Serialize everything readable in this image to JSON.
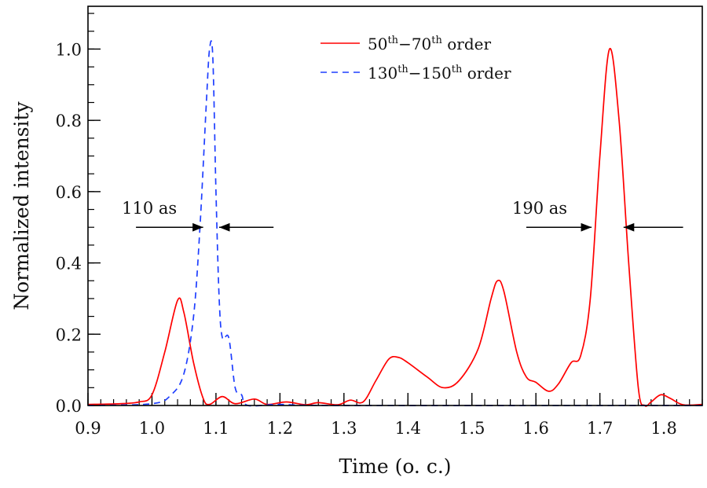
{
  "chart_data": {
    "type": "line",
    "xlabel": "Time (o. c.)",
    "ylabel": "Normalized intensity",
    "xlim": [
      0.9,
      1.86
    ],
    "ylim": [
      0.0,
      1.12
    ],
    "xticks": [
      0.9,
      1.0,
      1.1,
      1.2,
      1.3,
      1.4,
      1.5,
      1.6,
      1.7,
      1.8
    ],
    "xtick_labels": [
      "0.9",
      "1.0",
      "1.1",
      "1.2",
      "1.3",
      "1.4",
      "1.5",
      "1.6",
      "1.7",
      "1.8"
    ],
    "yticks": [
      0.0,
      0.2,
      0.4,
      0.6,
      0.8,
      1.0
    ],
    "ytick_labels": [
      "0.0",
      "0.2",
      "0.4",
      "0.6",
      "0.8",
      "1.0"
    ],
    "grid": false,
    "legend_placement": "top-center",
    "series": [
      {
        "name": "50th-70th order",
        "legend": {
          "a": "50",
          "sup1": "th",
          "b": "−70",
          "sup2": "th",
          "c": " order"
        },
        "color": "#ff0000",
        "dash": "solid",
        "x": [
          0.9,
          0.95,
          0.98,
          1.0,
          1.02,
          1.04,
          1.05,
          1.065,
          1.08,
          1.09,
          1.11,
          1.13,
          1.16,
          1.18,
          1.21,
          1.24,
          1.26,
          1.29,
          1.31,
          1.33,
          1.35,
          1.37,
          1.385,
          1.4,
          1.43,
          1.455,
          1.48,
          1.51,
          1.53,
          1.54,
          1.55,
          1.57,
          1.585,
          1.6,
          1.62,
          1.635,
          1.655,
          1.67,
          1.685,
          1.7,
          1.715,
          1.73,
          1.745,
          1.76,
          1.77,
          1.78,
          1.795,
          1.81,
          1.83,
          1.86
        ],
        "y": [
          0.003,
          0.005,
          0.01,
          0.03,
          0.15,
          0.295,
          0.26,
          0.12,
          0.02,
          0.003,
          0.025,
          0.005,
          0.018,
          0.003,
          0.01,
          0.002,
          0.008,
          0.002,
          0.015,
          0.01,
          0.07,
          0.13,
          0.135,
          0.12,
          0.08,
          0.05,
          0.07,
          0.16,
          0.3,
          0.35,
          0.32,
          0.15,
          0.08,
          0.065,
          0.04,
          0.06,
          0.12,
          0.14,
          0.3,
          0.7,
          1.0,
          0.8,
          0.4,
          0.05,
          0.0,
          0.01,
          0.03,
          0.02,
          0.002,
          0.003
        ]
      },
      {
        "name": "130th-150th order",
        "legend": {
          "a": "130",
          "sup1": "th",
          "b": "−150",
          "sup2": "th",
          "c": " order"
        },
        "color": "#1f3fff",
        "dash": "dashed",
        "x": [
          0.9,
          1.0,
          1.03,
          1.05,
          1.065,
          1.075,
          1.085,
          1.09,
          1.095,
          1.1,
          1.105,
          1.11,
          1.12,
          1.13,
          1.14,
          1.15,
          1.2,
          1.3,
          1.86
        ],
        "y": [
          0.0,
          0.005,
          0.03,
          0.09,
          0.25,
          0.5,
          0.85,
          1.0,
          0.98,
          0.6,
          0.3,
          0.19,
          0.19,
          0.05,
          0.03,
          0.0,
          0.003,
          0.0,
          0.0
        ]
      }
    ],
    "annotations": [
      {
        "text": "110 as",
        "level": 0.5,
        "left_arrow": [
          0.975,
          1.08
        ],
        "right_arrow": [
          1.19,
          1.105
        ]
      },
      {
        "text": "190 as",
        "level": 0.5,
        "left_arrow": [
          1.585,
          1.687
        ],
        "right_arrow": [
          1.83,
          1.737
        ]
      }
    ]
  }
}
